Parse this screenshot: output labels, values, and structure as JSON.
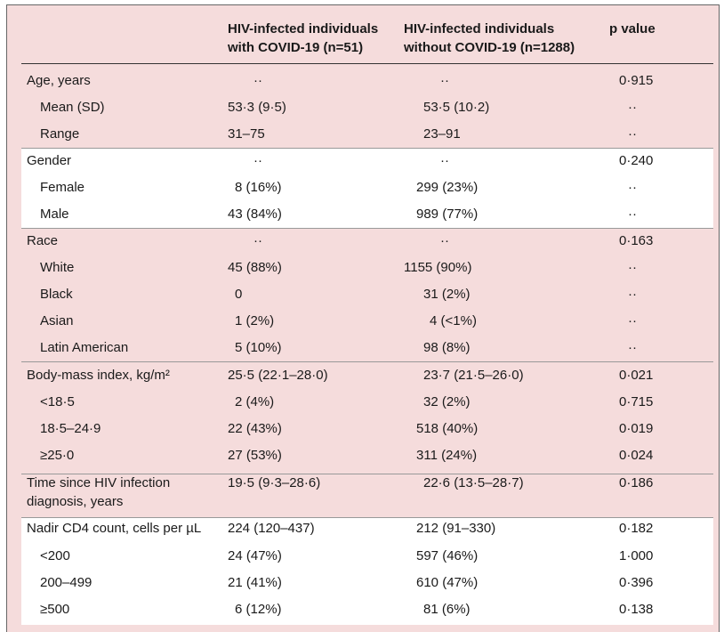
{
  "table": {
    "headers": {
      "col1": "HIV-infected individuals with COVID-19 (n=51)",
      "col1_line1": "HIV-infected individuals",
      "col1_line2": "with COVID-19 (n=51)",
      "col2_line1": "HIV-infected individuals",
      "col2_line2": "without COVID-19 (n=1288)",
      "col3": "p value"
    },
    "rows": [
      {
        "label": "Age, years",
        "c1": "··",
        "c2": "··",
        "p": "0·915"
      },
      {
        "label": "Mean (SD)",
        "c1": "53·3 (9·5)",
        "c2": "53·5 (10·2)",
        "p": "··"
      },
      {
        "label": "Range",
        "c1": "31–75",
        "c2": "23–91",
        "p": "··"
      },
      {
        "label": "Gender",
        "c1": "··",
        "c2": "··",
        "p": "0·240"
      },
      {
        "label": "Female",
        "c1": "8 (16%)",
        "c2": "299 (23%)",
        "p": "··"
      },
      {
        "label": "Male",
        "c1": "43 (84%)",
        "c2": "989 (77%)",
        "p": "··"
      },
      {
        "label": "Race",
        "c1": "··",
        "c2": "··",
        "p": "0·163"
      },
      {
        "label": "White",
        "c1": "45 (88%)",
        "c2": "1155 (90%)",
        "p": "··"
      },
      {
        "label": "Black",
        "c1": "0",
        "c2": "31 (2%)",
        "p": "··"
      },
      {
        "label": "Asian",
        "c1": "1 (2%)",
        "c2": "4 (<1%)",
        "p": "··"
      },
      {
        "label": "Latin American",
        "c1": "5 (10%)",
        "c2": "98 (8%)",
        "p": "··"
      },
      {
        "label": "Body-mass index, kg/m²",
        "c1": "25·5 (22·1–28·0)",
        "c2": "23·7 (21·5–26·0)",
        "p": "0·021"
      },
      {
        "label": "<18·5",
        "c1": "2 (4%)",
        "c2": "32 (2%)",
        "p": "0·715"
      },
      {
        "label": "18·5–24·9",
        "c1": "22 (43%)",
        "c2": "518 (40%)",
        "p": "0·019"
      },
      {
        "label": "≥25·0",
        "c1": "27 (53%)",
        "c2": "311 (24%)",
        "p": "0·024"
      },
      {
        "label": "Time since HIV infection diagnosis, years",
        "c1": "19·5 (9·3–28·6)",
        "c2": "22·6 (13·5–28·7)",
        "p": "0·186"
      },
      {
        "label": "Nadir CD4 count, cells per µL",
        "c1": "224 (120–437)",
        "c2": "212 (91–330)",
        "p": "0·182"
      },
      {
        "label": "<200",
        "c1": "24 (47%)",
        "c2": "597 (46%)",
        "p": "1·000"
      },
      {
        "label": "200–499",
        "c1": "21 (41%)",
        "c2": "610 (47%)",
        "p": "0·396"
      },
      {
        "label": "≥500",
        "c1": "6 (12%)",
        "c2": "81 (6%)",
        "p": "0·138"
      }
    ]
  },
  "colors": {
    "shade": "#f5dcdc",
    "band": "#ffffff",
    "rule": "#333333"
  }
}
